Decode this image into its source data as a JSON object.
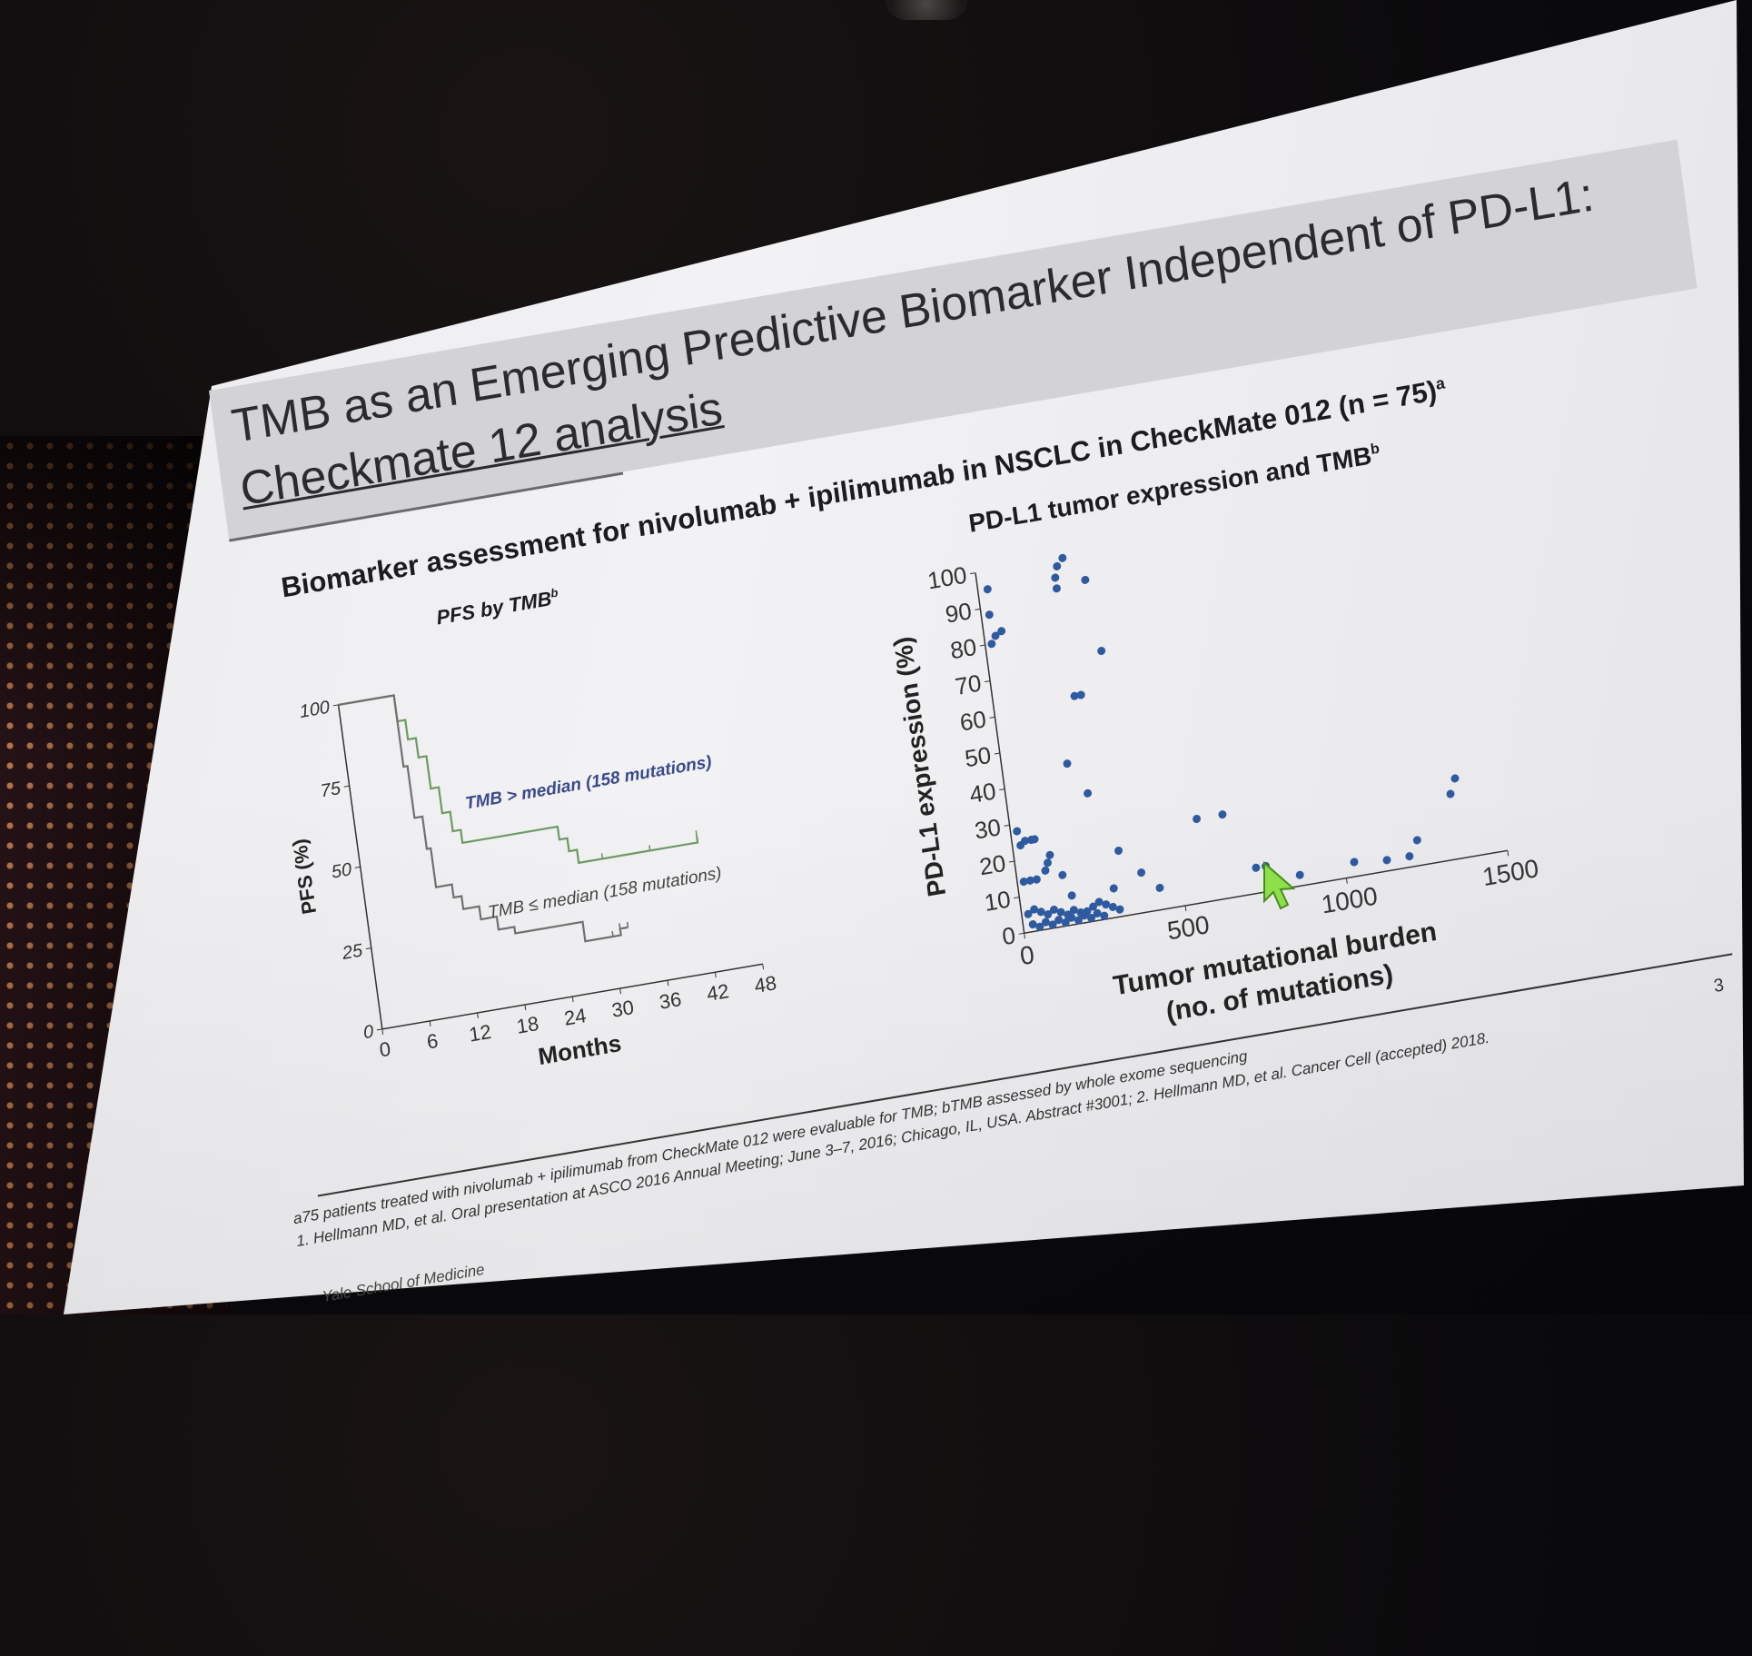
{
  "slide": {
    "title_line1": "TMB as an Emerging Predictive Biomarker Independent of PD-L1:",
    "title_line2": "Checkmate 12 analysis",
    "subtitle": "Biomarker assessment for nivolumab + ipilimumab in NSCLC in CheckMate 012 (n = 75)",
    "subtitle_sup": "a",
    "page_number": "3",
    "footnote_line1": "a75 patients treated with nivolumab + ipilimumab from CheckMate 012 were evaluable for TMB; bTMB assessed by whole exome sequencing",
    "footnote_line1b": "1. Hellmann MD, et al. Oral presentation at ASCO 2016 Annual Meeting; June 3–7, 2016; Chicago, IL, USA. Abstract #3001; 2. Hellmann MD, et al. Cancer Cell (accepted) 2018.",
    "brand": "Yale School of Medicine"
  },
  "chart_data": [
    {
      "type": "line",
      "title": "PFS by TMB",
      "title_sup": "b",
      "xlabel": "Months",
      "ylabel": "PFS (%)",
      "x_ticks": [
        "0",
        "6",
        "12",
        "18",
        "24",
        "30",
        "36",
        "42",
        "48"
      ],
      "y_ticks": [
        "0",
        "25",
        "50",
        "75",
        "100"
      ],
      "xlim": [
        0,
        48
      ],
      "ylim": [
        0,
        100
      ],
      "series": [
        {
          "name": "TMB > median (158 mutations)",
          "color": "#6d9a62",
          "label_color": "#3a4a8a",
          "points": [
            [
              0,
              100
            ],
            [
              6.5,
              100
            ],
            [
              7,
              92
            ],
            [
              8,
              86
            ],
            [
              9,
              80
            ],
            [
              10,
              70
            ],
            [
              11,
              62
            ],
            [
              12,
              56
            ],
            [
              13,
              52
            ],
            [
              18,
              52
            ],
            [
              24,
              52
            ],
            [
              25,
              48
            ],
            [
              26,
              44
            ],
            [
              27,
              40
            ],
            [
              30,
              40
            ],
            [
              36,
              40
            ],
            [
              42,
              40
            ],
            [
              42,
              42
            ]
          ]
        },
        {
          "name": "TMB ≤ median (158 mutations)",
          "color": "#707070",
          "label_color": "#444",
          "points": [
            [
              0,
              100
            ],
            [
              6.5,
              100
            ],
            [
              7,
              78
            ],
            [
              7.5,
              62
            ],
            [
              8.5,
              52
            ],
            [
              9,
              40
            ],
            [
              11,
              36
            ],
            [
              12,
              32
            ],
            [
              14,
              28
            ],
            [
              16,
              24
            ],
            [
              18,
              22
            ],
            [
              20,
              22
            ],
            [
              24,
              22
            ],
            [
              26,
              22
            ],
            [
              26.5,
              16
            ],
            [
              30,
              16
            ],
            [
              31,
              18
            ],
            [
              32,
              18
            ]
          ]
        }
      ]
    },
    {
      "type": "scatter",
      "title": "PD-L1 tumor expression and TMB",
      "title_sup": "b",
      "xlabel_line1": "Tumor mutational burden",
      "xlabel_line2": "(no. of mutations)",
      "ylabel": "PD-L1 expression (%)",
      "x_ticks": [
        "0",
        "500",
        "1000",
        "1500"
      ],
      "y_ticks": [
        "0",
        "10",
        "20",
        "30",
        "40",
        "50",
        "60",
        "70",
        "80",
        "90",
        "100"
      ],
      "xlim": [
        0,
        1500
      ],
      "ylim": [
        0,
        100
      ],
      "color": "#2f5aa0",
      "points": [
        [
          30,
          95
        ],
        [
          25,
          88
        ],
        [
          35,
          82
        ],
        [
          55,
          83
        ],
        [
          20,
          80
        ],
        [
          240,
          95
        ],
        [
          250,
          98
        ],
        [
          270,
          100
        ],
        [
          240,
          92
        ],
        [
          330,
          93
        ],
        [
          350,
          73
        ],
        [
          250,
          62
        ],
        [
          270,
          62
        ],
        [
          200,
          44
        ],
        [
          250,
          35
        ],
        [
          20,
          28
        ],
        [
          25,
          24
        ],
        [
          40,
          25
        ],
        [
          60,
          25
        ],
        [
          70,
          25
        ],
        [
          20,
          14
        ],
        [
          40,
          14
        ],
        [
          60,
          14
        ],
        [
          90,
          16
        ],
        [
          100,
          18
        ],
        [
          110,
          20
        ],
        [
          140,
          14
        ],
        [
          160,
          8
        ],
        [
          20,
          5
        ],
        [
          40,
          6
        ],
        [
          60,
          5
        ],
        [
          80,
          4
        ],
        [
          100,
          5
        ],
        [
          120,
          4
        ],
        [
          140,
          3
        ],
        [
          160,
          4
        ],
        [
          180,
          3
        ],
        [
          200,
          3
        ],
        [
          220,
          4
        ],
        [
          240,
          5
        ],
        [
          260,
          4
        ],
        [
          280,
          3
        ],
        [
          300,
          2
        ],
        [
          30,
          2
        ],
        [
          50,
          1
        ],
        [
          70,
          2
        ],
        [
          90,
          1
        ],
        [
          110,
          2
        ],
        [
          130,
          1
        ],
        [
          150,
          2
        ],
        [
          170,
          1
        ],
        [
          190,
          2
        ],
        [
          210,
          1
        ],
        [
          230,
          2
        ],
        [
          250,
          1
        ],
        [
          290,
          8
        ],
        [
          320,
          18
        ],
        [
          380,
          11
        ],
        [
          430,
          6
        ],
        [
          570,
          23
        ],
        [
          650,
          23
        ],
        [
          730,
          7
        ],
        [
          760,
          7
        ],
        [
          860,
          3
        ],
        [
          1030,
          4
        ],
        [
          1130,
          3
        ],
        [
          1200,
          3
        ],
        [
          1230,
          7
        ],
        [
          1350,
          18
        ],
        [
          1370,
          22
        ]
      ]
    }
  ]
}
